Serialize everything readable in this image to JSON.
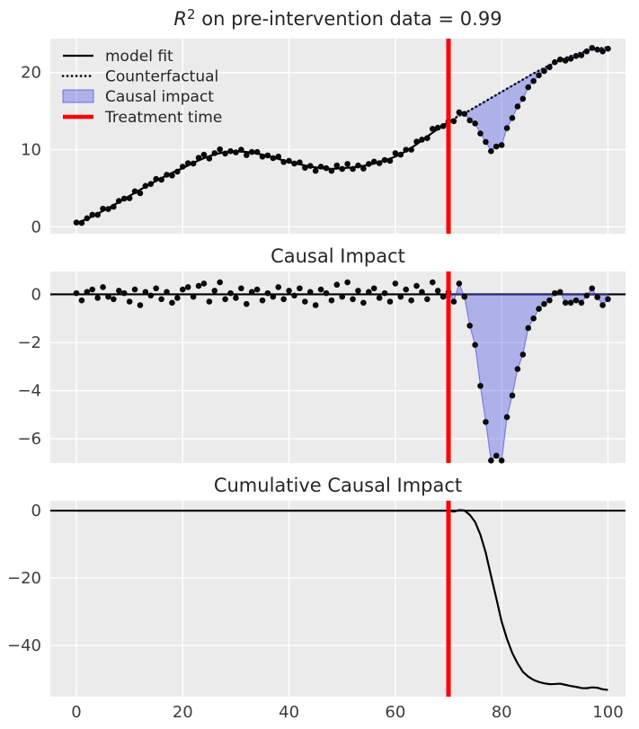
{
  "figure": {
    "bg": "#ffffff",
    "axes_bg": "#ebebeb",
    "grid_color": "#ffffff",
    "tick_color": "#3d3d3d",
    "title_color": "#262626",
    "scatter_color": "#0a0a0a",
    "line_color": "#000000",
    "treatment_color": "#ff0000",
    "fill_color": "rgba(60,65,225,0.35)",
    "fill_edge_color": "rgba(60,65,225,0.55)"
  },
  "chart_data": {
    "type": "line",
    "description": "Three stacked causal-impact panels sharing x axis 0-100",
    "x_start": 0,
    "x_end": 100,
    "x_step": 1,
    "treatment_time": 70,
    "r_squared": 0.99,
    "xticks": [
      0,
      20,
      40,
      60,
      80,
      100
    ],
    "panels": [
      {
        "title": "R² on pre-intervention data = 0.99",
        "title_parts": {
          "italic": "R",
          "sup": "2",
          "rest": " on pre-intervention data = 0.99"
        },
        "yticks": [
          0,
          10,
          20
        ],
        "ylim": [
          -0.9,
          24.4
        ],
        "legend": [
          {
            "label": "model fit",
            "type": "solid-line"
          },
          {
            "label": "Counterfactual",
            "type": "dotted-line"
          },
          {
            "label": "Causal impact",
            "type": "patch"
          },
          {
            "label": "Treatment time",
            "type": "red-line"
          }
        ]
      },
      {
        "title": "Causal Impact",
        "yticks": [
          0,
          -2,
          -4,
          -6
        ],
        "ylim": [
          -7.0,
          0.95
        ],
        "legend": []
      },
      {
        "title": "Cumulative Causal Impact",
        "yticks": [
          0,
          -20,
          -40
        ],
        "ylim": [
          -55.2,
          2.95
        ],
        "legend": []
      }
    ],
    "counterfactual": [
      0.5,
      0.75,
      1.0,
      1.35,
      1.7,
      2.05,
      2.4,
      2.8,
      3.2,
      3.6,
      4.0,
      4.4,
      4.8,
      5.2,
      5.6,
      5.95,
      6.3,
      6.65,
      7.0,
      7.3,
      7.6,
      7.95,
      8.3,
      8.6,
      8.9,
      9.15,
      9.4,
      9.55,
      9.7,
      9.75,
      9.8,
      9.75,
      9.7,
      9.6,
      9.5,
      9.35,
      9.2,
      9.0,
      8.8,
      8.6,
      8.4,
      8.25,
      8.1,
      7.95,
      7.8,
      7.7,
      7.6,
      7.55,
      7.5,
      7.55,
      7.6,
      7.65,
      7.7,
      7.8,
      7.9,
      8.05,
      8.2,
      8.4,
      8.6,
      8.85,
      9.1,
      9.45,
      9.8,
      10.25,
      10.7,
      11.2,
      11.7,
      12.2,
      12.7,
      13.15,
      13.6,
      14.0,
      14.4,
      14.75,
      15.1,
      15.5,
      15.9,
      16.3,
      16.7,
      17.1,
      17.5,
      17.9,
      18.3,
      18.7,
      19.1,
      19.5,
      19.9,
      20.25,
      20.6,
      20.95,
      21.3,
      21.6,
      21.9,
      22.15,
      22.4,
      22.6,
      22.8,
      22.95,
      23.1,
      23.2,
      23.3
    ],
    "impact": [
      0.05,
      -0.25,
      0.1,
      0.2,
      -0.15,
      0.3,
      -0.1,
      -0.2,
      0.15,
      0.05,
      -0.3,
      0.2,
      -0.45,
      0.1,
      -0.05,
      0.25,
      -0.2,
      0.1,
      -0.35,
      -0.15,
      0.2,
      0.3,
      -0.1,
      0.35,
      0.45,
      -0.3,
      0.15,
      0.5,
      -0.2,
      0.05,
      -0.15,
      0.25,
      -0.4,
      0.1,
      0.2,
      -0.25,
      0.05,
      -0.1,
      0.3,
      -0.2,
      0.15,
      -0.05,
      0.25,
      -0.3,
      0.1,
      -0.45,
      0.2,
      0.05,
      -0.25,
      0.4,
      -0.1,
      0.5,
      -0.2,
      0.15,
      -0.35,
      0.1,
      0.25,
      -0.15,
      0.05,
      -0.3,
      0.45,
      -0.1,
      0.2,
      -0.25,
      0.35,
      0.1,
      -0.2,
      0.5,
      0.15,
      -0.1,
      0.1,
      -0.3,
      0.45,
      -0.1,
      -1.3,
      -2.1,
      -3.8,
      -5.3,
      -6.9,
      -6.7,
      -6.9,
      -5.1,
      -4.2,
      -3.1,
      -2.5,
      -1.4,
      -1.0,
      -0.6,
      -0.4,
      -0.25,
      0.05,
      0.1,
      -0.35,
      -0.35,
      -0.25,
      -0.35,
      -0.05,
      0.25,
      -0.12,
      -0.45,
      -0.2
    ],
    "cumulative_from_treatment": [
      0,
      -0.3,
      0.15,
      0.05,
      -1.25,
      -3.35,
      -7.15,
      -12.45,
      -19.35,
      -26.05,
      -32.95,
      -38.05,
      -42.25,
      -45.35,
      -47.85,
      -49.25,
      -50.25,
      -50.85,
      -51.25,
      -51.5,
      -51.45,
      -51.35,
      -51.7,
      -52.05,
      -52.3,
      -52.65,
      -52.7,
      -52.45,
      -52.57,
      -53.02,
      -53.22
    ],
    "note": "observed = counterfactual + impact; cumulative is 0 before treatment_time"
  }
}
